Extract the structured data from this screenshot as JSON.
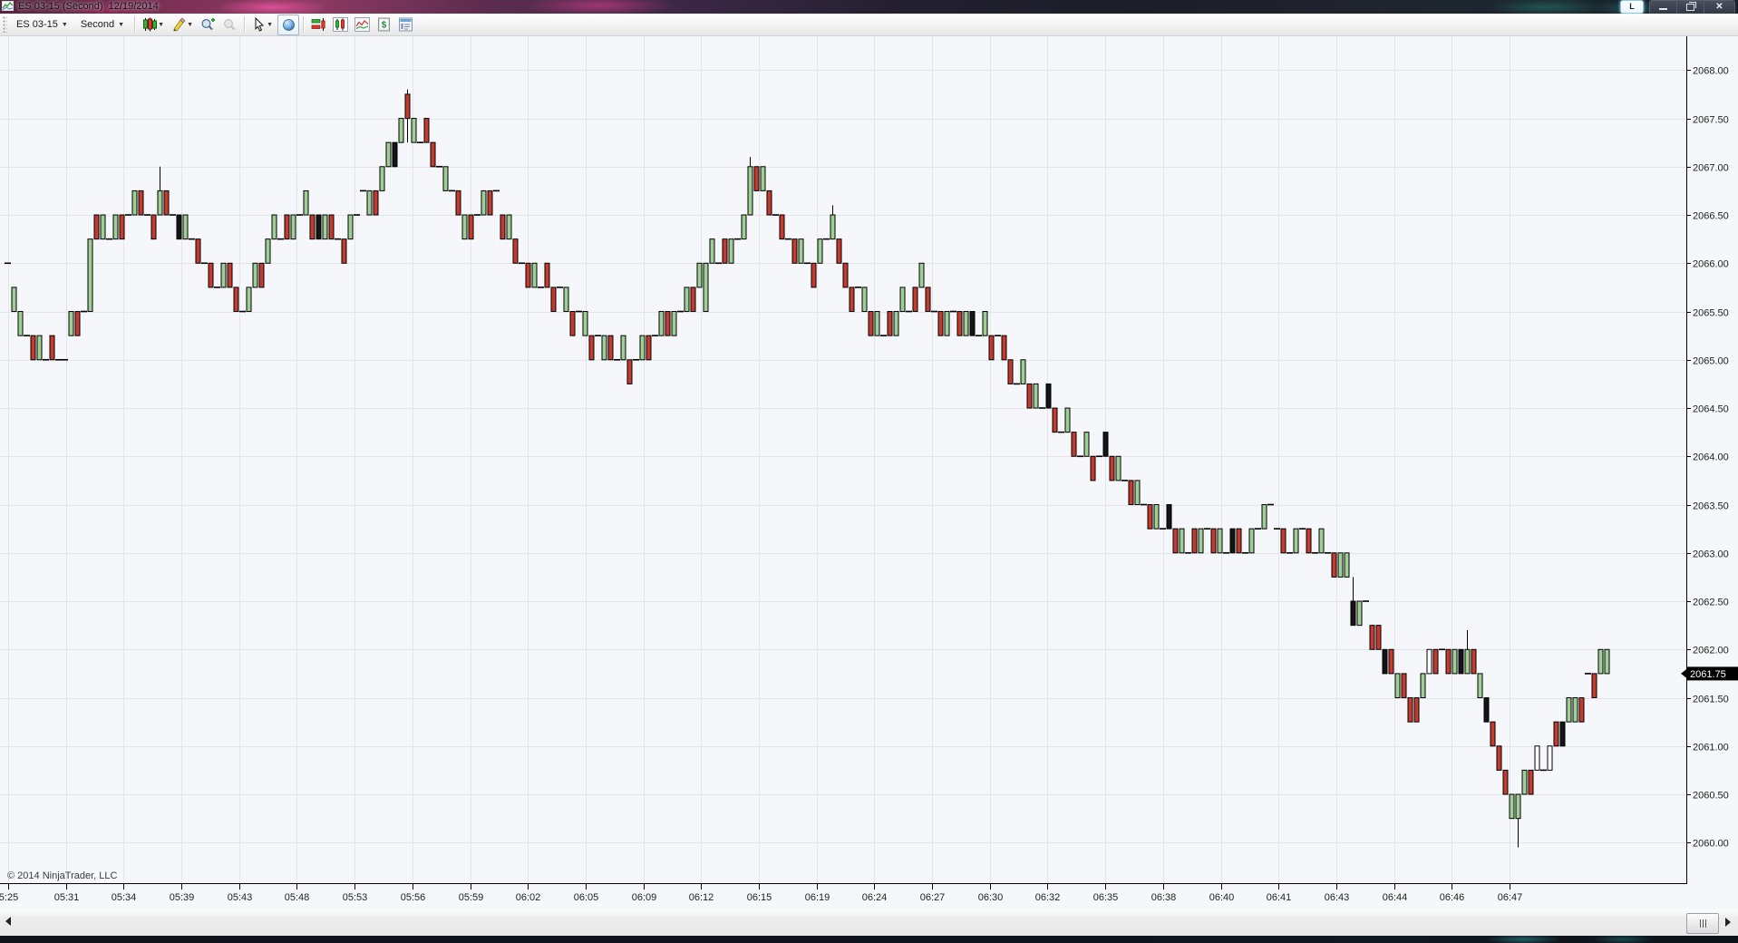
{
  "window": {
    "title": "ES 03-15 (Second)  12/19/2014",
    "link_button_label": "L",
    "controls": [
      "minimize",
      "restore",
      "close"
    ]
  },
  "toolbar": {
    "instrument": "ES 03-15",
    "period": "Second",
    "items": [
      {
        "type": "dropdown",
        "name": "instrument-selector",
        "bind": "instrument"
      },
      {
        "type": "dropdown",
        "name": "period-selector",
        "bind": "period"
      },
      {
        "type": "sep"
      },
      {
        "type": "icon",
        "name": "chart-style-icon",
        "caret": true
      },
      {
        "type": "icon",
        "name": "drawing-tools-icon",
        "caret": true
      },
      {
        "type": "icon",
        "name": "zoom-in-icon"
      },
      {
        "type": "icon",
        "name": "zoom-out-icon"
      },
      {
        "type": "sep"
      },
      {
        "type": "icon",
        "name": "cursor-icon",
        "caret": true
      },
      {
        "type": "icon",
        "name": "crosshair-globe-icon",
        "framed": true
      },
      {
        "type": "sep"
      },
      {
        "type": "icon",
        "name": "chart-trader-icon"
      },
      {
        "type": "icon",
        "name": "data-box-icon"
      },
      {
        "type": "icon",
        "name": "market-analyzer-icon"
      },
      {
        "type": "icon",
        "name": "account-dollar-icon"
      },
      {
        "type": "icon",
        "name": "properties-icon"
      }
    ]
  },
  "footer": {
    "copyright": "© 2014 NinjaTrader, LLC"
  },
  "chart_data": {
    "type": "candlestick",
    "instrument": "ES 03-15",
    "period": "Second",
    "date": "12/19/2014",
    "last_price": "2061.75",
    "y_axis": {
      "min": 2059.58,
      "max": 2068.35,
      "tick_step": 0.5,
      "labels": [
        "2068.00",
        "2067.50",
        "2067.00",
        "2066.50",
        "2066.00",
        "2065.50",
        "2065.00",
        "2064.50",
        "2064.00",
        "2063.50",
        "2063.00",
        "2062.50",
        "2062.00",
        "2061.50",
        "2061.00",
        "2060.50",
        "2060.00"
      ]
    },
    "x_axis": {
      "labels": [
        "5:25",
        "05:31",
        "05:34",
        "05:39",
        "05:43",
        "05:48",
        "05:53",
        "05:56",
        "05:59",
        "06:02",
        "06:05",
        "06:09",
        "06:12",
        "06:15",
        "06:19",
        "06:24",
        "06:27",
        "06:30",
        "06:32",
        "06:35",
        "06:38",
        "06:40",
        "06:41",
        "06:43",
        "06:44",
        "06:46",
        "06:47"
      ]
    },
    "colors": {
      "up": "#9fce97",
      "down": "#c53b30",
      "flat": "#151515",
      "hollow": "#ffffff",
      "wick": "#000000",
      "grid": "#e2e6ec",
      "axis": "#000000",
      "bg": "#f6f7fa",
      "marker_bg": "#000000",
      "marker_text": "#ffffff"
    },
    "bars": [
      [
        2066.0,
        2066.0,
        "d"
      ],
      [
        2065.5,
        2065.75,
        "g"
      ],
      [
        2065.25,
        2065.5,
        "g"
      ],
      [
        2065.25,
        2065.25,
        "d"
      ],
      [
        2065.0,
        2065.25,
        "r"
      ],
      [
        2065.0,
        2065.25,
        "g"
      ],
      [
        2065.0,
        2065.0,
        "d"
      ],
      [
        2065.0,
        2065.25,
        "r"
      ],
      [
        2065.0,
        2065.0,
        "d"
      ],
      [
        2065.0,
        2065.0,
        "d"
      ],
      [
        2065.25,
        2065.5,
        "g"
      ],
      [
        2065.25,
        2065.5,
        "r"
      ],
      [
        2065.5,
        2065.5,
        "d"
      ],
      [
        2065.5,
        2066.25,
        "g"
      ],
      [
        2066.25,
        2066.5,
        "r"
      ],
      [
        2066.25,
        2066.5,
        "g"
      ],
      [
        2066.25,
        2066.25,
        "d"
      ],
      [
        2066.25,
        2066.5,
        "g"
      ],
      [
        2066.25,
        2066.5,
        "r"
      ],
      [
        2066.5,
        2066.5,
        "d"
      ],
      [
        2066.5,
        2066.75,
        "g"
      ],
      [
        2066.5,
        2066.75,
        "r"
      ],
      [
        2066.5,
        2066.5,
        "d"
      ],
      [
        2066.25,
        2066.5,
        "r"
      ],
      [
        2066.5,
        2066.75,
        "g",
        2066.5,
        2067.0
      ],
      [
        2066.5,
        2066.75,
        "r"
      ],
      [
        2066.5,
        2066.5,
        "d"
      ],
      [
        2066.25,
        2066.5,
        "k"
      ],
      [
        2066.25,
        2066.5,
        "g"
      ],
      [
        2066.25,
        2066.25,
        "d"
      ],
      [
        2066.0,
        2066.25,
        "r"
      ],
      [
        2066.0,
        2066.0,
        "d"
      ],
      [
        2065.75,
        2066.0,
        "r"
      ],
      [
        2065.75,
        2065.75,
        "d"
      ],
      [
        2065.75,
        2066.0,
        "g"
      ],
      [
        2065.75,
        2066.0,
        "r"
      ],
      [
        2065.5,
        2065.75,
        "r"
      ],
      [
        2065.5,
        2065.5,
        "d"
      ],
      [
        2065.5,
        2065.75,
        "g"
      ],
      [
        2065.75,
        2066.0,
        "g"
      ],
      [
        2065.75,
        2066.0,
        "r"
      ],
      [
        2066.0,
        2066.25,
        "g"
      ],
      [
        2066.25,
        2066.5,
        "g"
      ],
      [
        2066.25,
        2066.25,
        "d"
      ],
      [
        2066.25,
        2066.5,
        "r"
      ],
      [
        2066.25,
        2066.5,
        "g"
      ],
      [
        2066.5,
        2066.5,
        "d"
      ],
      [
        2066.5,
        2066.75,
        "g"
      ],
      [
        2066.25,
        2066.5,
        "r"
      ],
      [
        2066.25,
        2066.5,
        "k"
      ],
      [
        2066.25,
        2066.5,
        "g"
      ],
      [
        2066.25,
        2066.5,
        "r"
      ],
      [
        2066.25,
        2066.25,
        "d"
      ],
      [
        2066.0,
        2066.25,
        "r"
      ],
      [
        2066.25,
        2066.5,
        "g"
      ],
      [
        2066.5,
        2066.5,
        "d"
      ],
      [
        2066.75,
        2066.75,
        "d"
      ],
      [
        2066.5,
        2066.75,
        "g"
      ],
      [
        2066.5,
        2066.75,
        "r"
      ],
      [
        2066.75,
        2067.0,
        "g"
      ],
      [
        2067.0,
        2067.25,
        "g"
      ],
      [
        2067.0,
        2067.25,
        "k"
      ],
      [
        2067.25,
        2067.5,
        "g"
      ],
      [
        2067.5,
        2067.75,
        "r",
        2067.25,
        2067.8
      ],
      [
        2067.25,
        2067.5,
        "g"
      ],
      [
        2067.25,
        2067.25,
        "d"
      ],
      [
        2067.25,
        2067.5,
        "r"
      ],
      [
        2067.0,
        2067.25,
        "r"
      ],
      [
        2067.0,
        2067.0,
        "d"
      ],
      [
        2066.75,
        2067.0,
        "g"
      ],
      [
        2066.75,
        2066.75,
        "d"
      ],
      [
        2066.5,
        2066.75,
        "r"
      ],
      [
        2066.25,
        2066.5,
        "g"
      ],
      [
        2066.25,
        2066.5,
        "r"
      ],
      [
        2066.5,
        2066.5,
        "d"
      ],
      [
        2066.5,
        2066.75,
        "g"
      ],
      [
        2066.5,
        2066.75,
        "r"
      ],
      [
        2066.75,
        2066.75,
        "d"
      ],
      [
        2066.25,
        2066.5,
        "r"
      ],
      [
        2066.25,
        2066.5,
        "g"
      ],
      [
        2066.0,
        2066.25,
        "r"
      ],
      [
        2066.0,
        2066.0,
        "d"
      ],
      [
        2065.75,
        2066.0,
        "r"
      ],
      [
        2065.75,
        2066.0,
        "g"
      ],
      [
        2065.75,
        2065.75,
        "d"
      ],
      [
        2065.75,
        2066.0,
        "r"
      ],
      [
        2065.5,
        2065.75,
        "r"
      ],
      [
        2065.75,
        2065.75,
        "d"
      ],
      [
        2065.5,
        2065.75,
        "g"
      ],
      [
        2065.25,
        2065.5,
        "r"
      ],
      [
        2065.5,
        2065.5,
        "d"
      ],
      [
        2065.25,
        2065.5,
        "g"
      ],
      [
        2065.0,
        2065.25,
        "r"
      ],
      [
        2065.25,
        2065.25,
        "d"
      ],
      [
        2065.0,
        2065.25,
        "g"
      ],
      [
        2065.0,
        2065.25,
        "r"
      ],
      [
        2065.0,
        2065.0,
        "d"
      ],
      [
        2065.0,
        2065.25,
        "g"
      ],
      [
        2064.75,
        2065.0,
        "r"
      ],
      [
        2065.0,
        2065.0,
        "d"
      ],
      [
        2065.0,
        2065.25,
        "g"
      ],
      [
        2065.0,
        2065.25,
        "r"
      ],
      [
        2065.25,
        2065.25,
        "d"
      ],
      [
        2065.25,
        2065.5,
        "g"
      ],
      [
        2065.25,
        2065.5,
        "r"
      ],
      [
        2065.25,
        2065.5,
        "g"
      ],
      [
        2065.5,
        2065.5,
        "d"
      ],
      [
        2065.5,
        2065.75,
        "g"
      ],
      [
        2065.5,
        2065.75,
        "r"
      ],
      [
        2065.75,
        2066.0,
        "g"
      ],
      [
        2065.5,
        2066.0,
        "g"
      ],
      [
        2066.0,
        2066.25,
        "g"
      ],
      [
        2066.0,
        2066.0,
        "d"
      ],
      [
        2066.0,
        2066.25,
        "r"
      ],
      [
        2066.0,
        2066.25,
        "g"
      ],
      [
        2066.25,
        2066.25,
        "d"
      ],
      [
        2066.25,
        2066.5,
        "g"
      ],
      [
        2066.5,
        2067.0,
        "g",
        2066.5,
        2067.1
      ],
      [
        2066.75,
        2067.0,
        "r"
      ],
      [
        2066.75,
        2067.0,
        "g"
      ],
      [
        2066.5,
        2066.75,
        "r"
      ],
      [
        2066.5,
        2066.5,
        "d"
      ],
      [
        2066.25,
        2066.5,
        "r"
      ],
      [
        2066.25,
        2066.25,
        "d"
      ],
      [
        2066.0,
        2066.25,
        "r"
      ],
      [
        2066.0,
        2066.25,
        "g"
      ],
      [
        2066.0,
        2066.0,
        "d"
      ],
      [
        2065.75,
        2066.0,
        "r"
      ],
      [
        2066.0,
        2066.25,
        "g"
      ],
      [
        2066.25,
        2066.25,
        "d"
      ],
      [
        2066.25,
        2066.5,
        "g",
        2066.25,
        2066.6
      ],
      [
        2066.0,
        2066.25,
        "r"
      ],
      [
        2065.75,
        2066.0,
        "r"
      ],
      [
        2065.5,
        2065.75,
        "r"
      ],
      [
        2065.75,
        2065.75,
        "d"
      ],
      [
        2065.5,
        2065.75,
        "g"
      ],
      [
        2065.25,
        2065.5,
        "r"
      ],
      [
        2065.25,
        2065.5,
        "g"
      ],
      [
        2065.25,
        2065.25,
        "d"
      ],
      [
        2065.25,
        2065.5,
        "r"
      ],
      [
        2065.25,
        2065.5,
        "g"
      ],
      [
        2065.5,
        2065.75,
        "g"
      ],
      [
        2065.5,
        2065.5,
        "d"
      ],
      [
        2065.5,
        2065.75,
        "r"
      ],
      [
        2065.75,
        2066.0,
        "g"
      ],
      [
        2065.5,
        2065.75,
        "r"
      ],
      [
        2065.5,
        2065.5,
        "d"
      ],
      [
        2065.25,
        2065.5,
        "r"
      ],
      [
        2065.25,
        2065.5,
        "g"
      ],
      [
        2065.5,
        2065.5,
        "d"
      ],
      [
        2065.25,
        2065.5,
        "r"
      ],
      [
        2065.25,
        2065.5,
        "g"
      ],
      [
        2065.25,
        2065.5,
        "k"
      ],
      [
        2065.25,
        2065.25,
        "d"
      ],
      [
        2065.25,
        2065.5,
        "g"
      ],
      [
        2065.0,
        2065.25,
        "r"
      ],
      [
        2065.25,
        2065.25,
        "d"
      ],
      [
        2065.0,
        2065.25,
        "r"
      ],
      [
        2064.75,
        2065.0,
        "r"
      ],
      [
        2064.75,
        2064.75,
        "d"
      ],
      [
        2064.75,
        2065.0,
        "g"
      ],
      [
        2064.5,
        2064.75,
        "r"
      ],
      [
        2064.5,
        2064.75,
        "g"
      ],
      [
        2064.5,
        2064.5,
        "d"
      ],
      [
        2064.5,
        2064.75,
        "k"
      ],
      [
        2064.25,
        2064.5,
        "r"
      ],
      [
        2064.25,
        2064.25,
        "d"
      ],
      [
        2064.25,
        2064.5,
        "g"
      ],
      [
        2064.0,
        2064.25,
        "r"
      ],
      [
        2064.0,
        2064.0,
        "d"
      ],
      [
        2064.0,
        2064.25,
        "g"
      ],
      [
        2063.75,
        2064.0,
        "r"
      ],
      [
        2064.0,
        2064.0,
        "d"
      ],
      [
        2064.0,
        2064.25,
        "k"
      ],
      [
        2063.75,
        2064.0,
        "r"
      ],
      [
        2063.75,
        2064.0,
        "g"
      ],
      [
        2063.75,
        2063.75,
        "d"
      ],
      [
        2063.5,
        2063.75,
        "r"
      ],
      [
        2063.5,
        2063.75,
        "g"
      ],
      [
        2063.5,
        2063.5,
        "d"
      ],
      [
        2063.25,
        2063.5,
        "r"
      ],
      [
        2063.25,
        2063.5,
        "g"
      ],
      [
        2063.25,
        2063.25,
        "d"
      ],
      [
        2063.25,
        2063.5,
        "k"
      ],
      [
        2063.0,
        2063.25,
        "r"
      ],
      [
        2063.0,
        2063.25,
        "g"
      ],
      [
        2063.0,
        2063.0,
        "d"
      ],
      [
        2063.0,
        2063.25,
        "r"
      ],
      [
        2063.0,
        2063.25,
        "g"
      ],
      [
        2063.25,
        2063.25,
        "d"
      ],
      [
        2063.0,
        2063.25,
        "r"
      ],
      [
        2063.0,
        2063.25,
        "g"
      ],
      [
        2063.0,
        2063.0,
        "d"
      ],
      [
        2063.0,
        2063.25,
        "k"
      ],
      [
        2063.0,
        2063.25,
        "r"
      ],
      [
        2063.0,
        2063.0,
        "d"
      ],
      [
        2063.0,
        2063.25,
        "g"
      ],
      [
        2063.25,
        2063.25,
        "d"
      ],
      [
        2063.25,
        2063.5,
        "g"
      ],
      [
        2063.5,
        2063.5,
        "d"
      ],
      [
        2063.25,
        2063.25,
        "d"
      ],
      [
        2063.0,
        2063.25,
        "r"
      ],
      [
        2063.0,
        2063.0,
        "d"
      ],
      [
        2063.0,
        2063.25,
        "g"
      ],
      [
        2063.25,
        2063.25,
        "d"
      ],
      [
        2063.0,
        2063.25,
        "r"
      ],
      [
        2063.0,
        2063.0,
        "d"
      ],
      [
        2063.0,
        2063.25,
        "g"
      ],
      [
        2063.0,
        2063.0,
        "d"
      ],
      [
        2062.75,
        2063.0,
        "r"
      ],
      [
        2062.75,
        2063.0,
        "g"
      ],
      [
        2062.75,
        2063.0,
        "g"
      ],
      [
        2062.25,
        2062.5,
        "k",
        2062.25,
        2062.75
      ],
      [
        2062.25,
        2062.5,
        "g"
      ],
      [
        2062.5,
        2062.5,
        "d"
      ],
      [
        2062.0,
        2062.25,
        "r"
      ],
      [
        2062.0,
        2062.25,
        "r"
      ],
      [
        2061.75,
        2062.0,
        "k"
      ],
      [
        2061.75,
        2062.0,
        "r"
      ],
      [
        2061.5,
        2061.75,
        "g"
      ],
      [
        2061.5,
        2061.75,
        "r"
      ],
      [
        2061.25,
        2061.5,
        "r"
      ],
      [
        2061.25,
        2061.5,
        "r"
      ],
      [
        2061.5,
        2061.75,
        "g"
      ],
      [
        2061.75,
        2062.0,
        "w"
      ],
      [
        2061.75,
        2062.0,
        "r"
      ],
      [
        2062.0,
        2062.0,
        "d"
      ],
      [
        2061.75,
        2062.0,
        "r"
      ],
      [
        2061.75,
        2062.0,
        "g"
      ],
      [
        2061.75,
        2062.0,
        "k"
      ],
      [
        2061.75,
        2062.0,
        "g",
        2061.75,
        2062.2
      ],
      [
        2061.75,
        2062.0,
        "r"
      ],
      [
        2061.5,
        2061.75,
        "g"
      ],
      [
        2061.25,
        2061.5,
        "k"
      ],
      [
        2061.0,
        2061.25,
        "r"
      ],
      [
        2060.75,
        2061.0,
        "r"
      ],
      [
        2060.5,
        2060.75,
        "r"
      ],
      [
        2060.25,
        2060.5,
        "g"
      ],
      [
        2060.25,
        2060.5,
        "g",
        2059.95,
        2060.5
      ],
      [
        2060.5,
        2060.75,
        "g"
      ],
      [
        2060.5,
        2060.75,
        "r"
      ],
      [
        2060.75,
        2061.0,
        "w"
      ],
      [
        2060.75,
        2060.75,
        "d"
      ],
      [
        2060.75,
        2061.0,
        "w"
      ],
      [
        2061.0,
        2061.25,
        "r"
      ],
      [
        2061.0,
        2061.25,
        "k"
      ],
      [
        2061.25,
        2061.5,
        "g"
      ],
      [
        2061.25,
        2061.5,
        "g"
      ],
      [
        2061.25,
        2061.5,
        "r"
      ],
      [
        2061.75,
        2061.75,
        "d"
      ],
      [
        2061.5,
        2061.75,
        "r"
      ],
      [
        2061.75,
        2062.0,
        "g"
      ],
      [
        2061.75,
        2062.0,
        "g"
      ]
    ]
  },
  "scrollbar": {
    "left_arrow": "left-arrow",
    "grip": "grip",
    "right_arrow": "right-arrow"
  }
}
